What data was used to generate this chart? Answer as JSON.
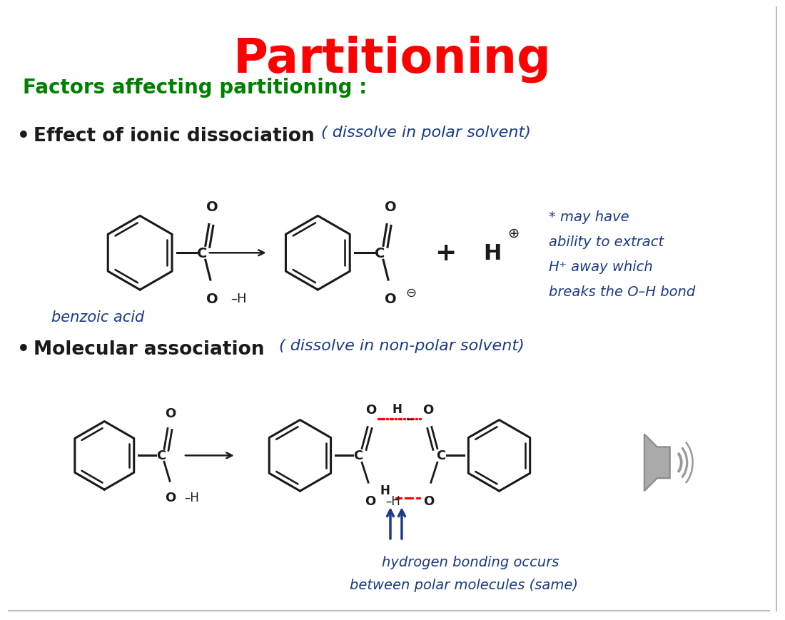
{
  "title": "Partitioning",
  "title_color": "#FF0000",
  "title_fontsize": 48,
  "subtitle": "Factors affecting partitioning :",
  "subtitle_color": "#008000",
  "subtitle_fontsize": 20,
  "bullet1": "Effect of ionic dissociation",
  "bullet1_note": "( dissolve in polar solvent)",
  "bullet2": "Molecular association",
  "bullet2_note": "( dissolve in non-polar solvent)",
  "annotation1_line1": "* may have",
  "annotation1_line2": "ability to extract",
  "annotation1_line3": "H⁺ away which",
  "annotation1_line4": "breaks the O–H bond",
  "annotation2_line1": "hydrogen bonding occurs",
  "annotation2_line2": "between polar molecules (same)",
  "benzoic_acid_label": "benzoic acid",
  "bg_color": "#FFFFFF",
  "handwriting_color": "#1a3a8a",
  "black_color": "#1a1a1a",
  "green_color": "#008000",
  "red_color": "#FF0000"
}
